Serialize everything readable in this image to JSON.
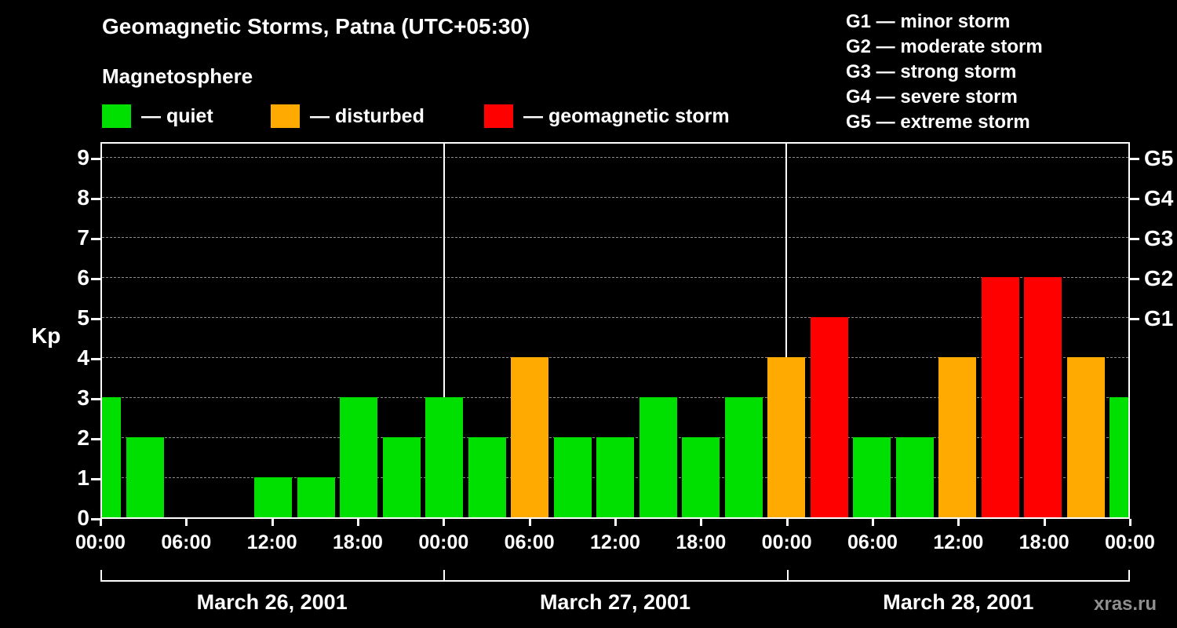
{
  "header": {
    "title": "Geomagnetic Storms, Patna (UTC+05:30)",
    "subtitle": "Magnetosphere"
  },
  "legend": {
    "items": [
      {
        "name": "quiet",
        "label": "— quiet",
        "color": "#00e000"
      },
      {
        "name": "disturbed",
        "label": "— disturbed",
        "color": "#ffaa00"
      },
      {
        "name": "storm",
        "label": "— geomagnetic storm",
        "color": "#ff0000"
      }
    ]
  },
  "storm_scale": {
    "items": [
      "G1 — minor storm",
      "G2 — moderate storm",
      "G3 — strong storm",
      "G4 — severe storm",
      "G5 — extreme storm"
    ]
  },
  "axes": {
    "y_title": "Kp",
    "y_ticks": [
      "0",
      "1",
      "2",
      "3",
      "4",
      "5",
      "6",
      "7",
      "8",
      "9"
    ],
    "right_ticks": [
      {
        "label": "G1",
        "kp": 5
      },
      {
        "label": "G2",
        "kp": 6
      },
      {
        "label": "G3",
        "kp": 7
      },
      {
        "label": "G4",
        "kp": 8
      },
      {
        "label": "G5",
        "kp": 9
      }
    ],
    "x_ticks": [
      "00:00",
      "06:00",
      "12:00",
      "18:00",
      "00:00",
      "06:00",
      "12:00",
      "18:00",
      "00:00",
      "06:00",
      "12:00",
      "18:00",
      "00:00"
    ]
  },
  "chart_data": {
    "type": "bar",
    "title": "Geomagnetic Storms, Patna (UTC+05:30)",
    "ylabel": "Kp",
    "ylim": [
      0,
      9.4
    ],
    "bar_interval_hours": 3,
    "color_rule": "Kp 0-3 green (quiet), Kp 4 orange (disturbed), Kp 5+ red (geomagnetic storm)",
    "days": [
      {
        "date": "March 26, 2001",
        "kp_values": [
          3,
          2,
          0,
          0,
          1,
          1,
          3,
          2
        ]
      },
      {
        "date": "March 27, 2001",
        "kp_values": [
          3,
          2,
          4,
          2,
          2,
          3,
          2,
          3
        ]
      },
      {
        "date": "March 28, 2001",
        "kp_values": [
          4,
          5,
          2,
          2,
          4,
          6,
          6,
          4
        ]
      }
    ],
    "trailing_partial_bar_kp": 3,
    "grid": "dashed horizontal lines at each integer Kp level",
    "legend_position": "top-left"
  },
  "footer": {
    "watermark": "xras.ru"
  }
}
